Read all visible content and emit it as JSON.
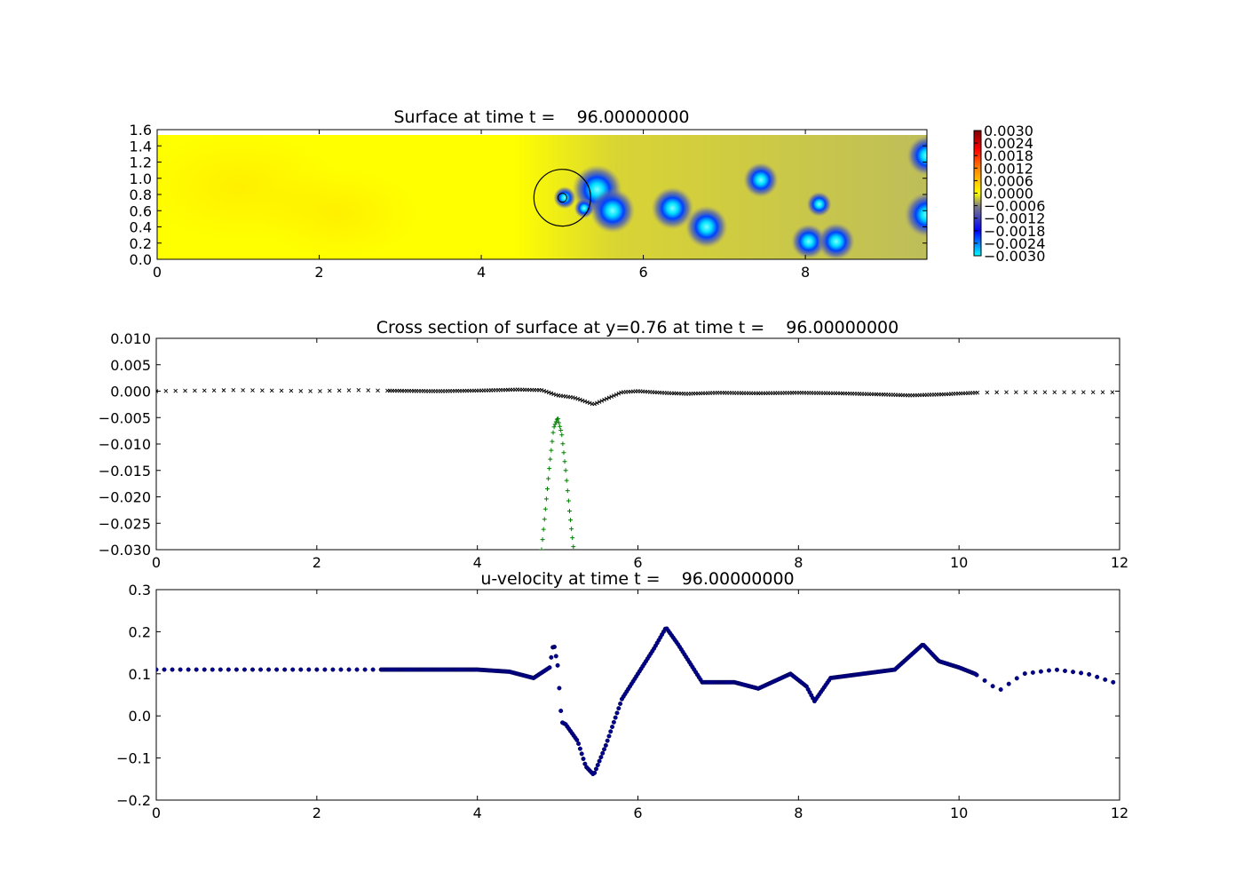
{
  "chart_data": [
    {
      "type": "heatmap",
      "title": "Surface at time t =    96.00000000",
      "xlim": [
        0,
        9.5
      ],
      "ylim": [
        0,
        1.6
      ],
      "xticks": [
        "0",
        "2",
        "4",
        "6",
        "8"
      ],
      "yticks": [
        "0.0",
        "0.2",
        "0.4",
        "0.6",
        "0.8",
        "1.0",
        "1.2",
        "1.4",
        "1.6"
      ],
      "colormap_colors": [
        "#00ffff",
        "#0000ff",
        "#808080",
        "#ffff00",
        "#ff8000",
        "#ff0000",
        "#800000"
      ],
      "colorbar": {
        "range": [
          -0.003,
          0.003
        ],
        "ticks": [
          "0.0030",
          "0.0024",
          "0.0018",
          "0.0012",
          "0.0006",
          "0.0000",
          "−0.0006",
          "−0.0012",
          "−0.0018",
          "−0.0024",
          "−0.0030"
        ]
      },
      "circle": {
        "x": 5.0,
        "y": 0.76,
        "radius": 0.35
      },
      "spots": [
        {
          "x": 5.43,
          "y": 0.86,
          "strength": 1.0
        },
        {
          "x": 5.62,
          "y": 0.6,
          "strength": 0.9
        },
        {
          "x": 6.36,
          "y": 0.63,
          "strength": 0.85
        },
        {
          "x": 6.78,
          "y": 0.4,
          "strength": 0.85
        },
        {
          "x": 7.45,
          "y": 0.98,
          "strength": 0.7
        },
        {
          "x": 8.17,
          "y": 0.68,
          "strength": 0.5
        },
        {
          "x": 8.04,
          "y": 0.22,
          "strength": 0.7
        },
        {
          "x": 8.38,
          "y": 0.22,
          "strength": 0.75
        },
        {
          "x": 9.5,
          "y": 1.28,
          "strength": 0.8
        },
        {
          "x": 9.5,
          "y": 0.55,
          "strength": 0.9
        },
        {
          "x": 5.03,
          "y": 0.76,
          "strength": 0.45
        },
        {
          "x": 5.27,
          "y": 0.63,
          "strength": 0.4
        }
      ]
    },
    {
      "type": "scatter",
      "title": "Cross section of surface at y=0.76 at time t =    96.00000000",
      "xlim": [
        0,
        12
      ],
      "ylim": [
        -0.03,
        0.01
      ],
      "xticks": [
        "0",
        "2",
        "4",
        "6",
        "8",
        "10",
        "12"
      ],
      "yticks": [
        "0.010",
        "0.005",
        "0.000",
        "−0.005",
        "−0.010",
        "−0.015",
        "−0.020",
        "−0.025",
        "−0.030"
      ],
      "series": [
        {
          "marker": "x",
          "color": "#000000",
          "x": [
            0,
            0.5,
            1.0,
            1.5,
            2.0,
            2.5,
            2.8,
            3.5,
            4.0,
            4.5,
            4.8,
            5.0,
            5.2,
            5.45,
            5.6,
            5.8,
            6.0,
            6.3,
            6.6,
            7.0,
            7.5,
            8.0,
            8.5,
            9.0,
            9.4,
            9.8,
            10.2,
            10.5,
            11.0,
            11.5,
            12.0
          ],
          "y": [
            0.0,
            0.0001,
            0.0002,
            0.0001,
            0.0,
            0.0002,
            0.0001,
            0.0,
            0.0001,
            0.0003,
            0.0002,
            -0.0008,
            -0.0012,
            -0.0025,
            -0.0015,
            -0.0002,
            0.0,
            -0.0003,
            -0.0005,
            -0.0003,
            -0.0004,
            -0.0003,
            -0.0004,
            -0.0006,
            -0.0008,
            -0.0006,
            -0.0003,
            -0.0002,
            -0.0002,
            -0.0002,
            -0.0002
          ]
        },
        {
          "marker": "+",
          "color": "#008000",
          "x": [
            4.8,
            4.85,
            4.9,
            4.95,
            5.0,
            5.05,
            5.1,
            5.15,
            5.2
          ],
          "y": [
            -0.03,
            -0.022,
            -0.014,
            -0.007,
            -0.005,
            -0.008,
            -0.015,
            -0.023,
            -0.03
          ]
        }
      ]
    },
    {
      "type": "scatter",
      "title": "u-velocity at time t =    96.00000000",
      "xlim": [
        0,
        12
      ],
      "ylim": [
        -0.2,
        0.3
      ],
      "xticks": [
        "0",
        "2",
        "4",
        "6",
        "8",
        "10",
        "12"
      ],
      "yticks": [
        "0.3",
        "0.2",
        "0.1",
        "0.0",
        "−0.1",
        "−0.2"
      ],
      "series": [
        {
          "marker": "o",
          "color": "#00008b",
          "x": [
            0,
            1.0,
            2.0,
            2.8,
            3.5,
            4.0,
            4.4,
            4.7,
            4.9,
            4.95,
            5.0,
            5.05,
            5.1,
            5.25,
            5.35,
            5.45,
            5.6,
            5.8,
            6.0,
            6.2,
            6.35,
            6.5,
            6.8,
            7.2,
            7.5,
            7.9,
            8.1,
            8.2,
            8.4,
            8.8,
            9.2,
            9.55,
            9.75,
            10.0,
            10.2,
            10.5,
            10.8,
            11.2,
            11.6,
            12.0
          ],
          "y": [
            0.11,
            0.11,
            0.11,
            0.11,
            0.11,
            0.11,
            0.105,
            0.09,
            0.115,
            0.175,
            0.12,
            -0.015,
            -0.02,
            -0.06,
            -0.12,
            -0.14,
            -0.07,
            0.04,
            0.1,
            0.16,
            0.21,
            0.17,
            0.08,
            0.08,
            0.065,
            0.1,
            0.07,
            0.035,
            0.09,
            0.1,
            0.11,
            0.17,
            0.13,
            0.115,
            0.1,
            0.06,
            0.1,
            0.11,
            0.1,
            0.075
          ]
        }
      ]
    }
  ]
}
